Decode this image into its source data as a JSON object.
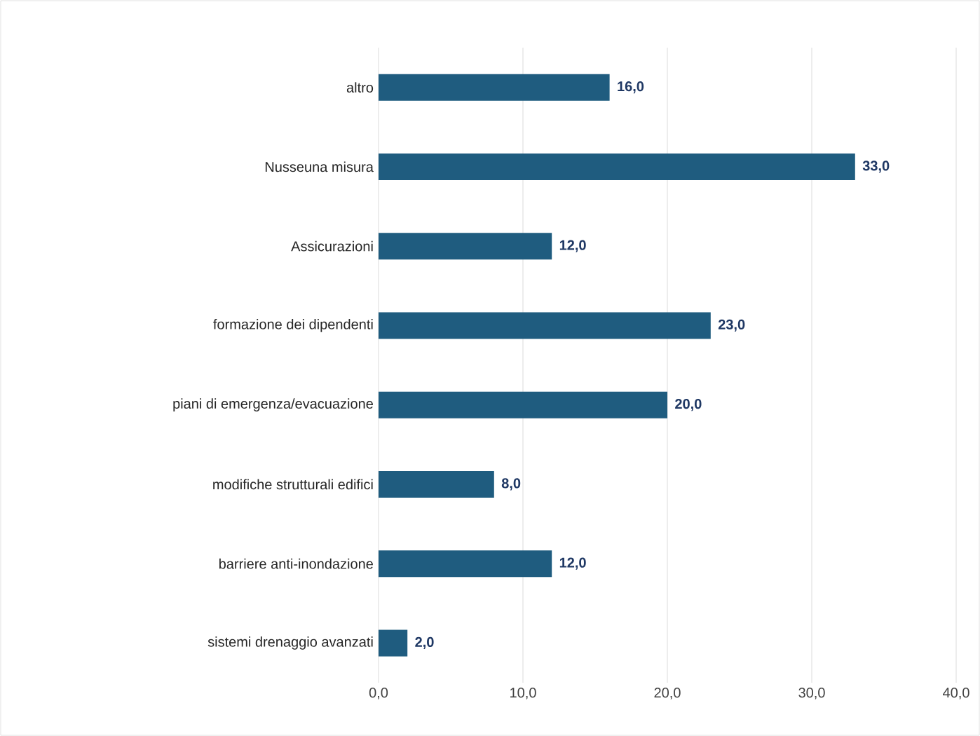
{
  "chart_data": {
    "type": "bar",
    "orientation": "horizontal",
    "categories": [
      "altro",
      "Nusseuna misura",
      "Assicurazioni",
      "formazione dei dipendenti",
      "piani di emergenza/evacuazione",
      "modifiche strutturali edifici",
      "barriere anti-inondazione",
      "sistemi drenaggio avanzati"
    ],
    "values": [
      16,
      33,
      12,
      23,
      20,
      8,
      12,
      2
    ],
    "value_labels": [
      "16,0",
      "33,0",
      "12,0",
      "23,0",
      "20,0",
      "8,0",
      "12,0",
      "2,0"
    ],
    "color": "#1f5c7f",
    "xlim": [
      0,
      40
    ],
    "xticks": [
      {
        "value": 0,
        "label": "0,0"
      },
      {
        "value": 10,
        "label": "10,0"
      },
      {
        "value": 20,
        "label": "20,0"
      },
      {
        "value": 30,
        "label": "30,0"
      },
      {
        "value": 40,
        "label": "40,0"
      }
    ],
    "grid": "x"
  }
}
